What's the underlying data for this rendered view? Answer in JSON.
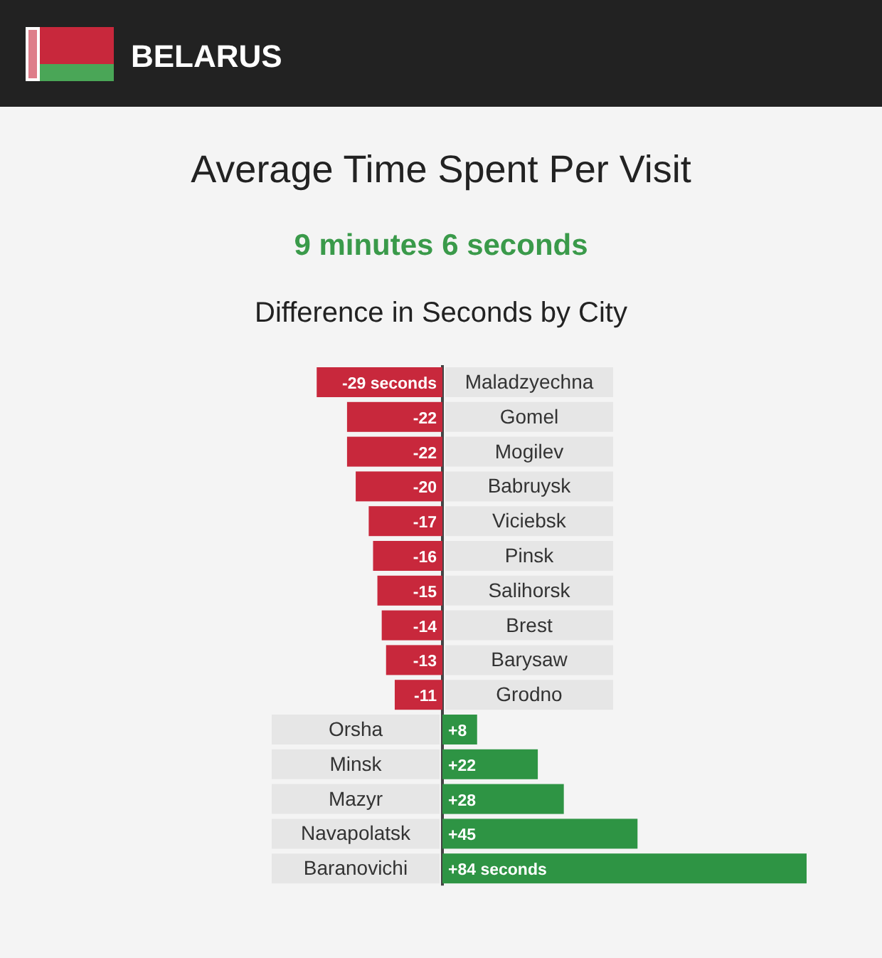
{
  "chart_data": {
    "type": "bar",
    "orientation": "horizontal",
    "title": "Average Time Spent Per Visit",
    "subtitle": "9 minutes 6 seconds",
    "annotations": [
      "BELARUS",
      "Difference in Seconds by City"
    ],
    "categories": [
      "Maladzyechna",
      "Gomel",
      "Mogilev",
      "Babruysk",
      "Viciebsk",
      "Pinsk",
      "Salihorsk",
      "Brest",
      "Barysaw",
      "Grodno",
      "Orsha",
      "Minsk",
      "Mazyr",
      "Navapolatsk",
      "Baranovichi"
    ],
    "values": [
      -29,
      -22,
      -22,
      -20,
      -17,
      -16,
      -15,
      -14,
      -13,
      -11,
      8,
      22,
      28,
      45,
      84
    ],
    "colors": [
      "#c8283c",
      "#c8283c",
      "#c8283c",
      "#c8283c",
      "#c8283c",
      "#c8283c",
      "#c8283c",
      "#c8283c",
      "#c8283c",
      "#c8283c",
      "#2e9444",
      "#2e9444",
      "#2e9444",
      "#2e9444",
      "#2e9444"
    ],
    "value_labels": [
      "-29 seconds",
      "-22",
      "-22",
      "-20",
      "-17",
      "-16",
      "-15",
      "-14",
      "-13",
      "-11",
      "+8",
      "+22",
      "+28",
      "+45",
      "+84 seconds"
    ]
  }
}
